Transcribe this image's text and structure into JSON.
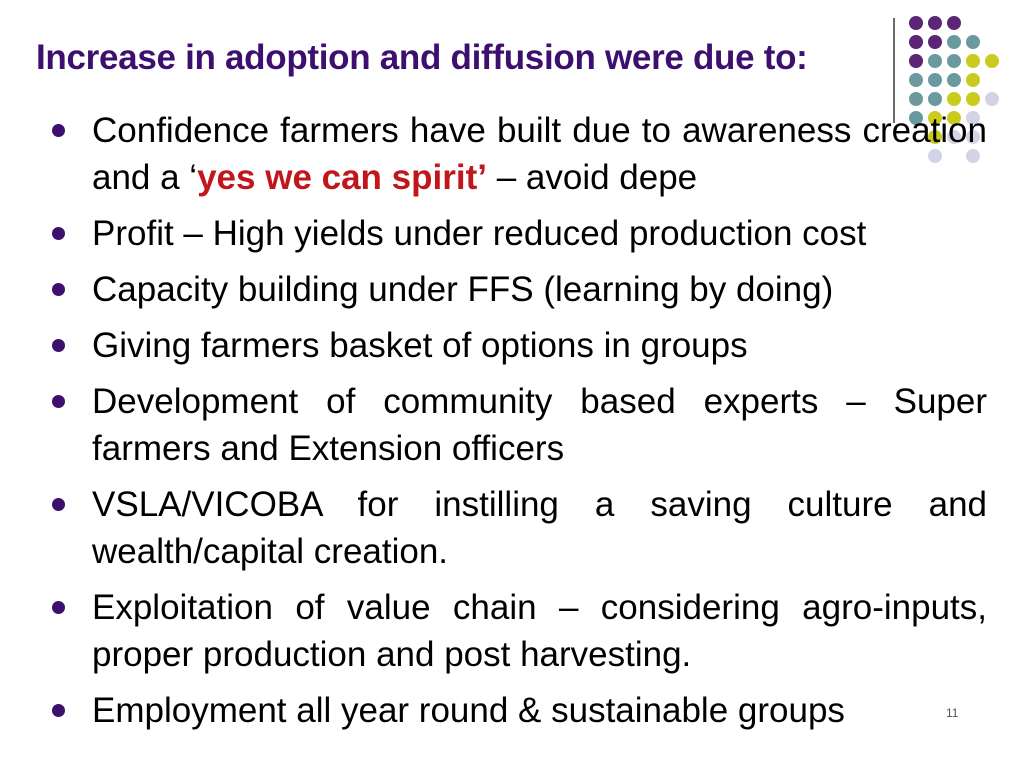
{
  "slide": {
    "title": "Increase in adoption and diffusion were due to:",
    "bullets": [
      {
        "pre": "Confidence farmers have built due to awareness creation and a ‘",
        "highlight": "yes we can spirit’",
        "post": " – avoid depe"
      },
      {
        "text": "Profit – High yields under reduced production cost"
      },
      {
        "text": "Capacity building under FFS (learning by doing)"
      },
      {
        "text": "Giving farmers basket of options in groups"
      },
      {
        "text": "Development of community based experts – Super farmers and Extension officers"
      },
      {
        "text": "VSLA/VICOBA for instilling a saving culture and wealth/capital creation."
      },
      {
        "text": "Exploitation of value chain – considering agro-inputs, proper production and post harvesting."
      },
      {
        "text": "Employment all year round & sustainable groups"
      }
    ],
    "page_number": "11"
  },
  "colors": {
    "title": "#3d0f6e",
    "highlight": "#c0161c",
    "bullet": "#3d0f6e",
    "dot_purple": "#5c2576",
    "dot_teal": "#6a9a9e",
    "dot_yellow": "#c9cc1e",
    "dot_lavender": "#d3d3e6"
  }
}
